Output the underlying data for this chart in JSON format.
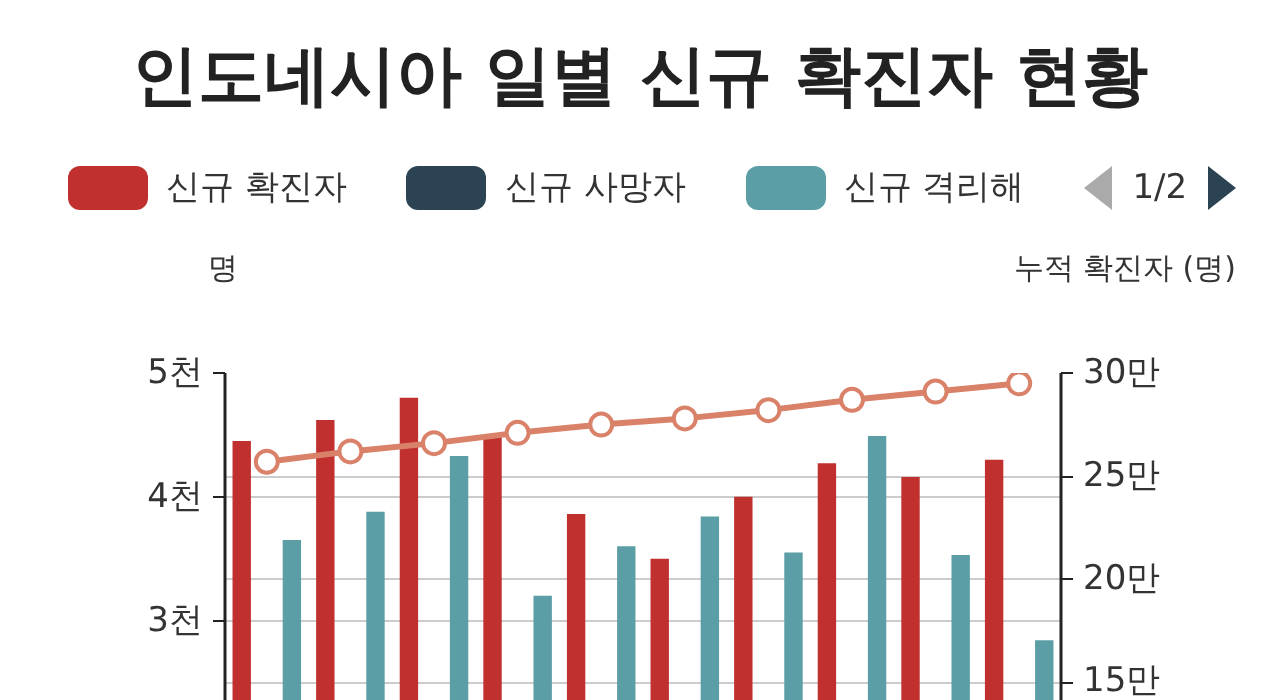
{
  "chart_data": {
    "type": "bar",
    "title": "인도네시아 일별 신규 확진자 현황",
    "ylabel": "명",
    "y2label": "누적 확진자 (명)",
    "annotations": [
      "1/2"
    ],
    "categories": [
      null,
      null,
      null,
      null,
      null,
      null,
      null,
      null,
      null,
      null
    ],
    "series": [
      {
        "name": "신규 확진자",
        "color": "#c0302e",
        "values": [
          4.45,
          4.62,
          4.8,
          4.5,
          3.86,
          3.5,
          4.0,
          4.27,
          4.16,
          4.3
        ]
      },
      {
        "name": "신규 사망자",
        "color": "#2c4354",
        "values": [
          null,
          null,
          null,
          null,
          null,
          null,
          null,
          null,
          null,
          null
        ]
      },
      {
        "name": "신규 격리해",
        "color": "#5b9ea5",
        "values": [
          3.65,
          3.88,
          4.33,
          3.2,
          3.6,
          3.84,
          3.55,
          4.49,
          3.53,
          2.84
        ]
      },
      {
        "type": "line",
        "axis": "y2",
        "color": "#d98269",
        "values": [
          25.7,
          26.2,
          26.6,
          27.1,
          27.5,
          27.8,
          28.2,
          28.7,
          29.1,
          29.5
        ]
      }
    ],
    "ylim": [
      2.35,
      5
    ],
    "yticks": [
      {
        "value": 3,
        "label": "3천"
      },
      {
        "value": 4,
        "label": "4천"
      },
      {
        "value": 5,
        "label": "5천"
      }
    ],
    "y2lim": [
      14.1,
      30
    ],
    "y2ticks": [
      {
        "value": 15,
        "label": "15만"
      },
      {
        "value": 20,
        "label": "20만"
      },
      {
        "value": 25,
        "label": "25만"
      },
      {
        "value": 30,
        "label": "30만"
      }
    ],
    "grid": true,
    "legend": "top",
    "marker": "circle",
    "line_style": "solid"
  }
}
